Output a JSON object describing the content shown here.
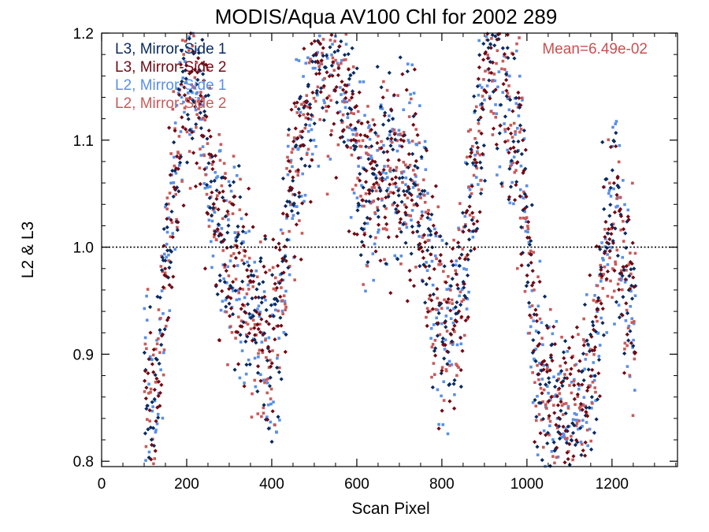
{
  "chart_data": {
    "type": "scatter",
    "title": "MODIS/Aqua AV100 Chl for 2002 289",
    "xlabel": "Scan Pixel",
    "ylabel": "L2 & L3",
    "xlim": [
      0,
      1354
    ],
    "ylim": [
      0.795,
      1.2
    ],
    "x_ticks": [
      0,
      200,
      400,
      600,
      800,
      1000,
      1200
    ],
    "y_ticks": [
      0.8,
      0.9,
      1.0,
      1.1,
      1.2
    ],
    "x_tick_labels": [
      "0",
      "200",
      "400",
      "600",
      "800",
      "1000",
      "1200"
    ],
    "y_tick_labels": [
      "0.8",
      "0.9",
      "1.0",
      "1.1",
      "1.2"
    ],
    "reference_line": {
      "y": 1.0,
      "style": "dotted"
    },
    "annotation": {
      "text": "Mean=6.49e-02",
      "color": "#c85050"
    },
    "legend_position": "top-left",
    "series": [
      {
        "name": "L3, Mirror-Side 1",
        "color": "#0a2a5e",
        "marker": "diamond"
      },
      {
        "name": "L3, Mirror-Side 2",
        "color": "#6e0a14",
        "marker": "diamond"
      },
      {
        "name": "L2, Mirror-Side 1",
        "color": "#5a8fe6",
        "marker": "square"
      },
      {
        "name": "L2, Mirror-Side 2",
        "color": "#c85a5a",
        "marker": "square"
      }
    ],
    "trend": {
      "x": [
        100,
        120,
        140,
        160,
        180,
        200,
        220,
        240,
        260,
        280,
        300,
        320,
        340,
        360,
        380,
        400,
        420,
        440,
        460,
        480,
        500,
        520,
        540,
        560,
        580,
        600,
        620,
        640,
        660,
        680,
        700,
        720,
        740,
        760,
        780,
        800,
        820,
        840,
        860,
        880,
        900,
        920,
        940,
        960,
        980,
        1000,
        1020,
        1040,
        1060,
        1080,
        1100,
        1120,
        1140,
        1160,
        1180,
        1200,
        1220,
        1240,
        1255
      ],
      "y": [
        0.88,
        0.84,
        0.92,
        1.02,
        1.1,
        1.15,
        1.15,
        1.11,
        1.05,
        1.02,
        1.0,
        0.98,
        0.96,
        0.93,
        0.9,
        0.9,
        0.96,
        1.03,
        1.08,
        1.12,
        1.16,
        1.18,
        1.19,
        1.17,
        1.14,
        1.09,
        1.06,
        1.06,
        1.07,
        1.08,
        1.07,
        1.06,
        1.05,
        1.02,
        0.96,
        0.92,
        0.93,
        0.96,
        1.0,
        1.08,
        1.16,
        1.19,
        1.16,
        1.12,
        1.1,
        1.03,
        0.9,
        0.86,
        0.85,
        0.84,
        0.83,
        0.83,
        0.86,
        0.9,
        0.98,
        1.04,
        1.0,
        0.95,
        0.92
      ],
      "spread": 0.045,
      "x_range": [
        100,
        1255
      ]
    }
  }
}
